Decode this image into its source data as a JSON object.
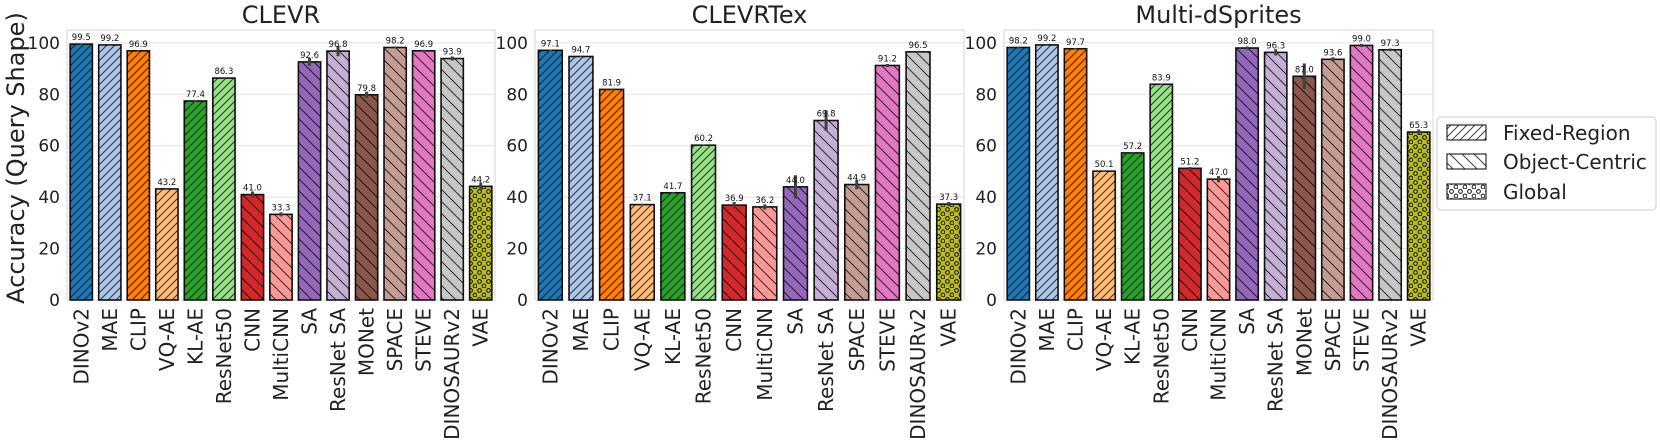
{
  "figure": {
    "ylabel": "Accuracy (Query Shape)"
  },
  "legend": {
    "placement": "right",
    "items": [
      {
        "label": "Fixed-Region",
        "pattern": "forward-diagonal"
      },
      {
        "label": "Object-Centric",
        "pattern": "back-diagonal"
      },
      {
        "label": "Global",
        "pattern": "circles"
      }
    ]
  },
  "colors": {
    "DINOv2": "#1f77b4",
    "MAE": "#aec7e8",
    "CLIP": "#ff7f0e",
    "VQ-AE": "#ffbb78",
    "KL-AE": "#2ca02c",
    "ResNet50": "#98df8a",
    "CNN": "#d62728",
    "MultiCNN": "#ff9896",
    "SA": "#9467bd",
    "ResNet SA": "#c5b0d5",
    "MONet": "#8c564b",
    "SPACE": "#c49c94",
    "STEVE": "#e377c2",
    "DINOSAURv2": "#c7c7c7",
    "VAE": "#bcbd22"
  },
  "chart_data": [
    {
      "type": "bar",
      "title": "CLEVR",
      "ylim": [
        0,
        105
      ],
      "yticks": [
        0,
        20,
        40,
        60,
        80,
        100
      ],
      "grid": true,
      "categories": [
        "DINOv2",
        "MAE",
        "CLIP",
        "VQ-AE",
        "KL-AE",
        "ResNet50",
        "CNN",
        "MultiCNN",
        "SA",
        "ResNet SA",
        "MONet",
        "SPACE",
        "STEVE",
        "DINOSAURv2",
        "VAE"
      ],
      "values": [
        99.5,
        99.2,
        96.9,
        43.2,
        77.4,
        86.3,
        41.0,
        33.3,
        92.6,
        96.8,
        79.8,
        98.2,
        96.9,
        93.9,
        44.2
      ],
      "labels": [
        "99.5",
        "99.2",
        "96.9",
        "43.2",
        "77.4",
        "86.3",
        "41.0",
        "33.3",
        "92.6",
        "96.8",
        "79.8",
        "98.2",
        "96.9",
        "93.9",
        "44.2"
      ],
      "errors": [
        0.3,
        0.3,
        0.3,
        0.3,
        0.3,
        0.3,
        1.2,
        0.8,
        1.5,
        2.0,
        1.2,
        0.4,
        0.4,
        0.8,
        1.5
      ],
      "groups": [
        "Fixed-Region",
        "Fixed-Region",
        "Fixed-Region",
        "Fixed-Region",
        "Fixed-Region",
        "Fixed-Region",
        "Object-Centric",
        "Object-Centric",
        "Object-Centric",
        "Object-Centric",
        "Object-Centric",
        "Object-Centric",
        "Object-Centric",
        "Object-Centric",
        "Global"
      ]
    },
    {
      "type": "bar",
      "title": "CLEVRTex",
      "ylim": [
        0,
        105
      ],
      "yticks": [
        0,
        20,
        40,
        60,
        80,
        100
      ],
      "grid": true,
      "categories": [
        "DINOv2",
        "MAE",
        "CLIP",
        "VQ-AE",
        "KL-AE",
        "ResNet50",
        "CNN",
        "MultiCNN",
        "SA",
        "ResNet SA",
        "SPACE",
        "STEVE",
        "DINOSAURv2",
        "VAE"
      ],
      "values": [
        97.1,
        94.7,
        81.9,
        37.1,
        41.7,
        60.2,
        36.9,
        36.2,
        44.0,
        69.8,
        44.9,
        91.2,
        96.5,
        37.3
      ],
      "labels": [
        "97.1",
        "94.7",
        "81.9",
        "37.1",
        "41.7",
        "60.2",
        "36.9",
        "36.2",
        "44.0",
        "69.8",
        "44.9",
        "91.2",
        "96.5",
        "37.3"
      ],
      "errors": [
        0.3,
        0.3,
        0.3,
        0.3,
        0.3,
        0.3,
        1.2,
        1.0,
        4.5,
        4.0,
        1.8,
        0.6,
        0.4,
        0.8
      ],
      "groups": [
        "Fixed-Region",
        "Fixed-Region",
        "Fixed-Region",
        "Fixed-Region",
        "Fixed-Region",
        "Fixed-Region",
        "Object-Centric",
        "Object-Centric",
        "Object-Centric",
        "Object-Centric",
        "Object-Centric",
        "Object-Centric",
        "Object-Centric",
        "Global"
      ]
    },
    {
      "type": "bar",
      "title": "Multi-dSprites",
      "ylim": [
        0,
        105
      ],
      "yticks": [
        0,
        20,
        40,
        60,
        80,
        100
      ],
      "grid": true,
      "categories": [
        "DINOv2",
        "MAE",
        "CLIP",
        "VQ-AE",
        "KL-AE",
        "ResNet50",
        "CNN",
        "MultiCNN",
        "SA",
        "ResNet SA",
        "MONet",
        "SPACE",
        "STEVE",
        "DINOSAURv2",
        "VAE"
      ],
      "values": [
        98.2,
        99.2,
        97.7,
        50.1,
        57.2,
        83.9,
        51.2,
        47.0,
        98.0,
        96.3,
        87.0,
        93.6,
        99.0,
        97.3,
        65.3
      ],
      "labels": [
        "98.2",
        "99.2",
        "97.7",
        "50.1",
        "57.2",
        "83.9",
        "51.2",
        "47.0",
        "98.0",
        "96.3",
        "87.0",
        "93.6",
        "99.0",
        "97.3",
        "65.3"
      ],
      "errors": [
        0.3,
        0.3,
        0.3,
        0.3,
        0.3,
        0.3,
        0.5,
        1.2,
        0.6,
        1.2,
        5.0,
        0.8,
        0.6,
        0.5,
        1.0
      ],
      "groups": [
        "Fixed-Region",
        "Fixed-Region",
        "Fixed-Region",
        "Fixed-Region",
        "Fixed-Region",
        "Fixed-Region",
        "Object-Centric",
        "Object-Centric",
        "Object-Centric",
        "Object-Centric",
        "Object-Centric",
        "Object-Centric",
        "Object-Centric",
        "Object-Centric",
        "Global"
      ]
    }
  ]
}
